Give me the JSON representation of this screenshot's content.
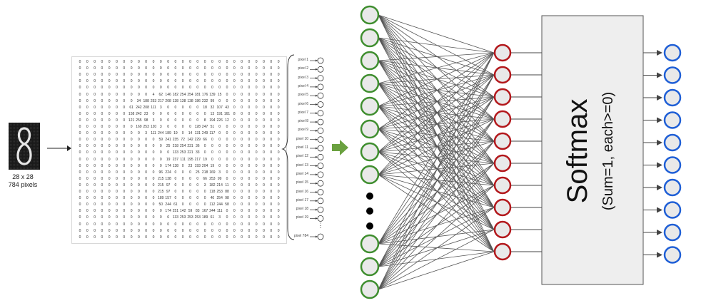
{
  "input_image": {
    "size_label": "28 x 28",
    "pixels_label": "784 pixels",
    "digit": "8"
  },
  "pixel_grid": {
    "rows": [
      [
        0,
        0,
        0,
        0,
        0,
        0,
        0,
        0,
        0,
        0,
        0,
        0,
        0,
        0,
        0,
        0,
        0,
        0,
        0,
        0,
        0,
        0,
        0,
        0,
        0,
        0,
        0,
        0
      ],
      [
        0,
        0,
        0,
        0,
        0,
        0,
        0,
        0,
        0,
        0,
        0,
        0,
        0,
        0,
        0,
        0,
        0,
        0,
        0,
        0,
        0,
        0,
        0,
        0,
        0,
        0,
        0,
        0
      ],
      [
        0,
        0,
        0,
        0,
        0,
        0,
        0,
        0,
        0,
        0,
        0,
        0,
        0,
        0,
        0,
        0,
        0,
        0,
        0,
        0,
        0,
        0,
        0,
        0,
        0,
        0,
        0,
        0
      ],
      [
        0,
        0,
        0,
        0,
        0,
        0,
        0,
        0,
        0,
        0,
        0,
        0,
        0,
        0,
        0,
        0,
        0,
        0,
        0,
        0,
        0,
        0,
        0,
        0,
        0,
        0,
        0,
        0
      ],
      [
        0,
        0,
        0,
        0,
        0,
        0,
        0,
        0,
        0,
        0,
        0,
        0,
        0,
        0,
        0,
        0,
        0,
        0,
        0,
        0,
        0,
        0,
        0,
        0,
        0,
        0,
        0,
        0
      ],
      [
        0,
        0,
        0,
        0,
        0,
        0,
        0,
        0,
        0,
        0,
        4,
        62,
        146,
        182,
        254,
        254,
        181,
        176,
        139,
        15,
        0,
        0,
        0,
        0,
        0,
        0,
        0,
        0
      ],
      [
        0,
        0,
        0,
        0,
        0,
        0,
        0,
        0,
        34,
        188,
        253,
        217,
        208,
        138,
        138,
        138,
        186,
        232,
        99,
        0,
        0,
        0,
        0,
        0,
        0,
        0,
        0,
        0
      ],
      [
        0,
        0,
        0,
        0,
        0,
        0,
        0,
        61,
        242,
        208,
        111,
        3,
        0,
        0,
        0,
        0,
        0,
        18,
        32,
        107,
        43,
        0,
        0,
        0,
        0,
        0,
        0,
        0
      ],
      [
        0,
        0,
        0,
        0,
        0,
        0,
        0,
        158,
        242,
        23,
        0,
        0,
        0,
        0,
        0,
        0,
        0,
        0,
        13,
        191,
        161,
        8,
        0,
        0,
        0,
        0,
        0,
        0
      ],
      [
        0,
        0,
        0,
        0,
        0,
        0,
        0,
        121,
        255,
        98,
        3,
        0,
        0,
        0,
        0,
        0,
        0,
        8,
        194,
        226,
        12,
        0,
        0,
        0,
        0,
        0,
        0,
        0
      ],
      [
        0,
        0,
        0,
        0,
        0,
        0,
        0,
        0,
        169,
        253,
        120,
        3,
        0,
        0,
        0,
        0,
        128,
        247,
        51,
        0,
        0,
        0,
        0,
        0,
        0,
        0,
        0,
        0
      ],
      [
        0,
        0,
        0,
        0,
        0,
        0,
        0,
        0,
        0,
        3,
        111,
        244,
        189,
        19,
        0,
        14,
        131,
        249,
        117,
        0,
        0,
        0,
        0,
        0,
        0,
        0,
        0,
        0
      ],
      [
        0,
        0,
        0,
        0,
        0,
        0,
        0,
        0,
        0,
        0,
        0,
        59,
        241,
        235,
        72,
        142,
        229,
        66,
        0,
        0,
        0,
        0,
        0,
        0,
        0,
        0,
        0,
        0
      ],
      [
        0,
        0,
        0,
        0,
        0,
        0,
        0,
        0,
        0,
        0,
        0,
        0,
        25,
        218,
        254,
        231,
        36,
        0,
        0,
        0,
        0,
        0,
        0,
        0,
        0,
        0,
        0,
        0
      ],
      [
        0,
        0,
        0,
        0,
        0,
        0,
        0,
        0,
        0,
        0,
        0,
        0,
        0,
        133,
        253,
        221,
        33,
        0,
        0,
        0,
        0,
        0,
        0,
        0,
        0,
        0,
        0,
        0
      ],
      [
        0,
        0,
        0,
        0,
        0,
        0,
        0,
        0,
        0,
        0,
        0,
        0,
        19,
        237,
        111,
        195,
        217,
        19,
        0,
        0,
        0,
        0,
        0,
        0,
        0,
        0,
        0,
        0
      ],
      [
        0,
        0,
        0,
        0,
        0,
        0,
        0,
        0,
        0,
        0,
        0,
        0,
        174,
        138,
        0,
        23,
        193,
        204,
        19,
        0,
        0,
        0,
        0,
        0,
        0,
        0,
        0,
        0
      ],
      [
        0,
        0,
        0,
        0,
        0,
        0,
        0,
        0,
        0,
        0,
        0,
        96,
        224,
        0,
        0,
        0,
        25,
        218,
        169,
        3,
        0,
        0,
        0,
        0,
        0,
        0,
        0,
        0
      ],
      [
        0,
        0,
        0,
        0,
        0,
        0,
        0,
        0,
        0,
        0,
        0,
        215,
        138,
        0,
        0,
        0,
        0,
        66,
        253,
        99,
        0,
        0,
        0,
        0,
        0,
        0,
        0,
        0
      ],
      [
        0,
        0,
        0,
        0,
        0,
        0,
        0,
        0,
        0,
        0,
        0,
        215,
        97,
        0,
        0,
        0,
        0,
        3,
        182,
        214,
        11,
        0,
        0,
        0,
        0,
        0,
        0,
        0
      ],
      [
        0,
        0,
        0,
        0,
        0,
        0,
        0,
        0,
        0,
        0,
        0,
        215,
        97,
        0,
        0,
        0,
        0,
        0,
        118,
        253,
        88,
        0,
        0,
        0,
        0,
        0,
        0,
        0
      ],
      [
        0,
        0,
        0,
        0,
        0,
        0,
        0,
        0,
        0,
        0,
        0,
        189,
        157,
        0,
        0,
        0,
        0,
        0,
        40,
        254,
        98,
        0,
        0,
        0,
        0,
        0,
        0,
        0
      ],
      [
        0,
        0,
        0,
        0,
        0,
        0,
        0,
        0,
        0,
        0,
        0,
        50,
        244,
        61,
        0,
        0,
        0,
        0,
        112,
        244,
        58,
        0,
        0,
        0,
        0,
        0,
        0,
        0
      ],
      [
        0,
        0,
        0,
        0,
        0,
        0,
        0,
        0,
        0,
        0,
        0,
        0,
        174,
        251,
        142,
        59,
        83,
        167,
        244,
        111,
        0,
        0,
        0,
        0,
        0,
        0,
        0,
        0
      ],
      [
        0,
        0,
        0,
        0,
        0,
        0,
        0,
        0,
        0,
        0,
        0,
        0,
        6,
        133,
        253,
        253,
        253,
        189,
        61,
        3,
        0,
        0,
        0,
        0,
        0,
        0,
        0,
        0
      ],
      [
        0,
        0,
        0,
        0,
        0,
        0,
        0,
        0,
        0,
        0,
        0,
        0,
        0,
        0,
        0,
        0,
        0,
        0,
        0,
        0,
        0,
        0,
        0,
        0,
        0,
        0,
        0,
        0
      ],
      [
        0,
        0,
        0,
        0,
        0,
        0,
        0,
        0,
        0,
        0,
        0,
        0,
        0,
        0,
        0,
        0,
        0,
        0,
        0,
        0,
        0,
        0,
        0,
        0,
        0,
        0,
        0,
        0
      ],
      [
        0,
        0,
        0,
        0,
        0,
        0,
        0,
        0,
        0,
        0,
        0,
        0,
        0,
        0,
        0,
        0,
        0,
        0,
        0,
        0,
        0,
        0,
        0,
        0,
        0,
        0,
        0,
        0
      ]
    ]
  },
  "pixel_labels": [
    "pixel 1",
    "pixel 2",
    "pixel 3",
    "pixel 4",
    "pixel 5",
    "pixel 6",
    "pixel 7",
    "pixel 8",
    "pixel 9",
    "pixel 10",
    "pixel 11",
    "pixel 12",
    "pixel 13",
    "pixel 14",
    "pixel 15",
    "pixel 16",
    "pixel 17",
    "pixel 18",
    "pixel 19",
    "pixel 784"
  ],
  "pixel_ellipsis": "⋮",
  "network": {
    "input_ellipsis": "• • •",
    "softmax_title": "Softmax",
    "softmax_subtitle": "(Sum=1, each>=0)",
    "colors": {
      "input_node": "#3f8e2f",
      "hidden_node": "#b3181c",
      "output_node": "#1f5fd6",
      "node_fill": "#e9e9e9",
      "softmax_fill": "#eeeeee",
      "arrow": "#6aa13f",
      "edges": "#555555"
    }
  }
}
